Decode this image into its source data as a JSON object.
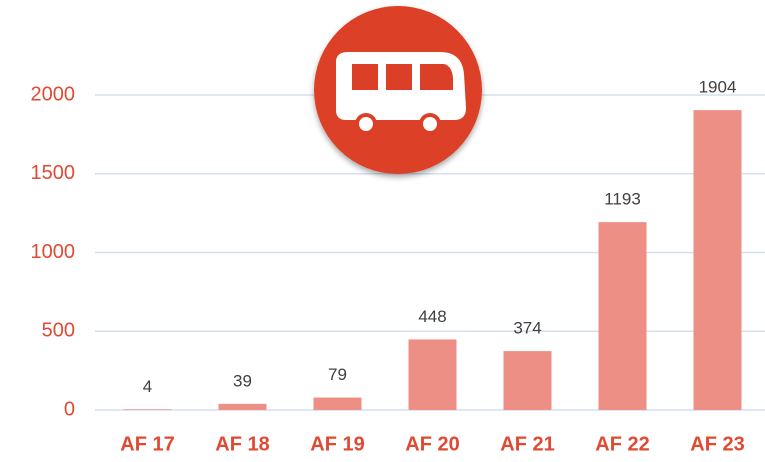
{
  "chart_data": {
    "type": "bar",
    "categories": [
      "AF 17",
      "AF 18",
      "AF 19",
      "AF 20",
      "AF 21",
      "AF 22",
      "AF 23"
    ],
    "values": [
      4,
      39,
      79,
      448,
      374,
      1193,
      1904
    ],
    "color": "#ee8f86",
    "ylim": [
      0,
      2000
    ],
    "yticks": [
      0,
      500,
      1000,
      1500,
      2000
    ],
    "grid": true
  }
}
